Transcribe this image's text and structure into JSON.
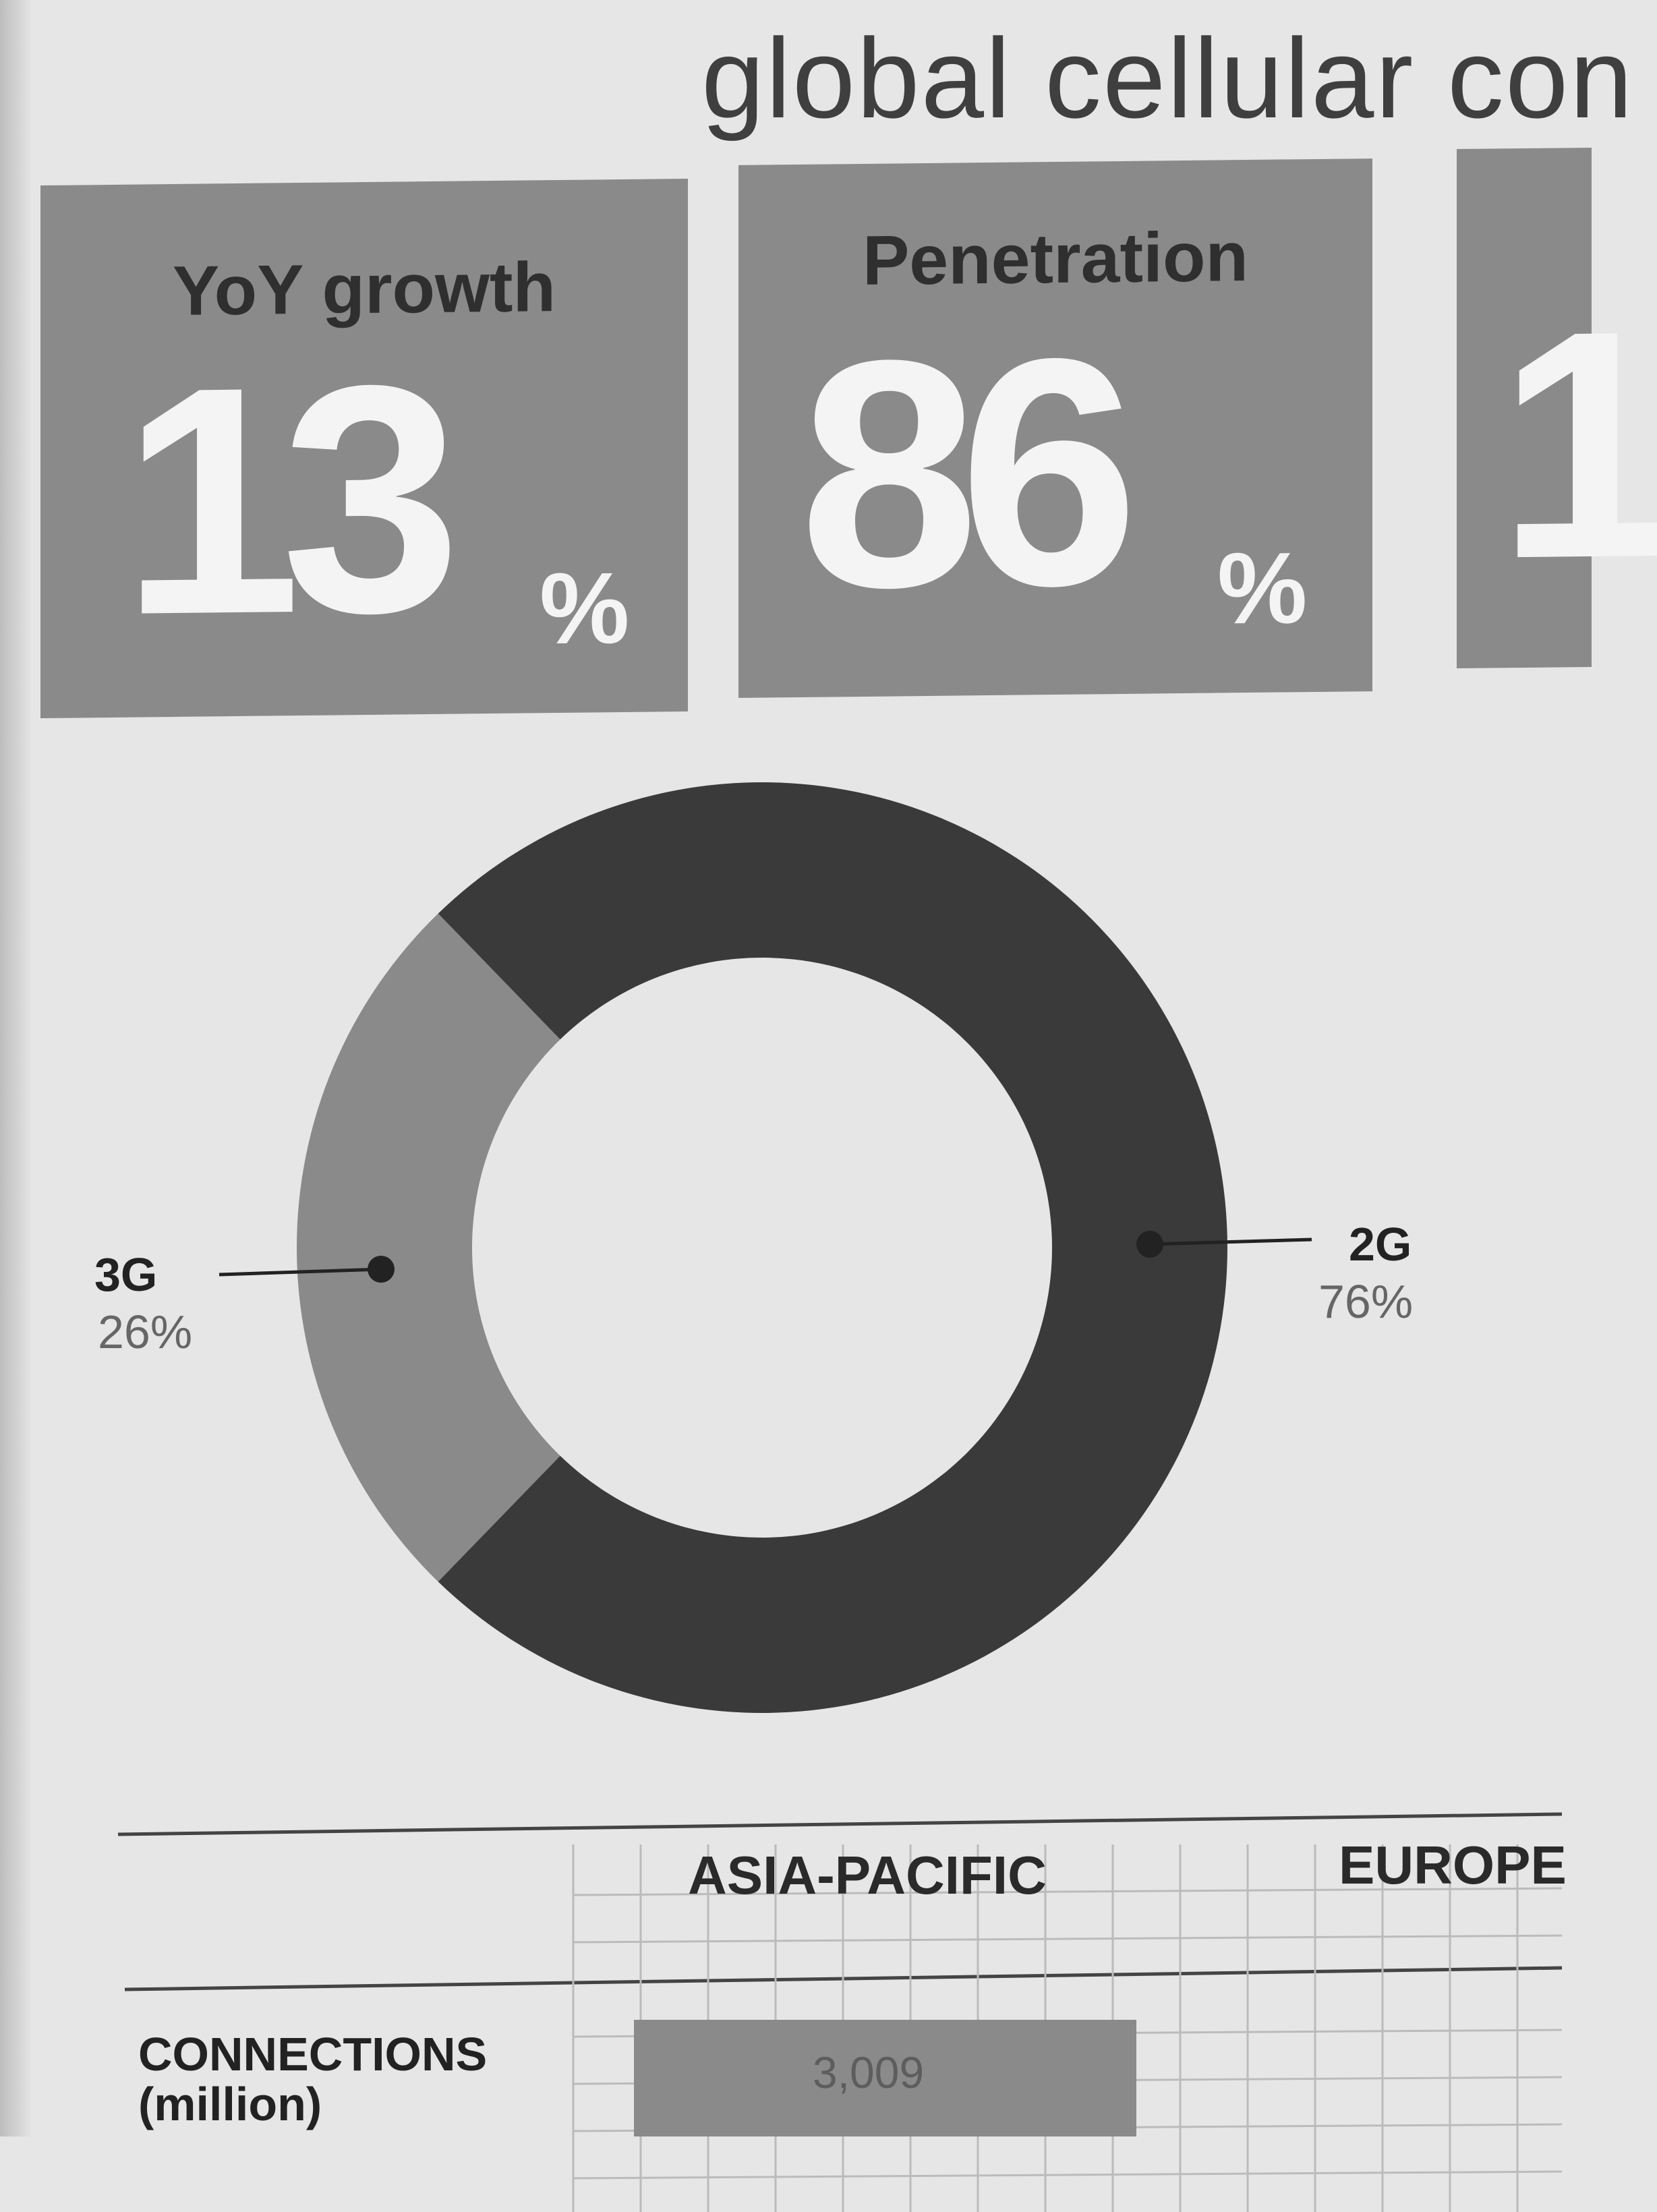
{
  "header": {
    "title": "global cellular con"
  },
  "stats": [
    {
      "label": "YoY growth",
      "value": "13",
      "unit": "%"
    },
    {
      "label": "Penetration",
      "value": "86",
      "unit": "%"
    },
    {
      "label": "",
      "value": "1",
      "unit": ""
    }
  ],
  "colors": {
    "box": "#8a8a8a",
    "donut_2g": "#3a3a3a",
    "donut_3g": "#8a8a8a",
    "paper": "#e6e6e6"
  },
  "chart_data": {
    "type": "pie",
    "title": "",
    "slices": [
      {
        "label": "3G",
        "value": 26,
        "value_label": "26%"
      },
      {
        "label": "2G",
        "value": 76,
        "value_label": "76%"
      }
    ]
  },
  "table": {
    "regions": [
      "ASIA-PACIFIC",
      "EUROPE"
    ],
    "rows": [
      {
        "label_line1": "CONNECTIONS",
        "label_line2": "(million)",
        "values": [
          "3,009"
        ]
      }
    ]
  }
}
